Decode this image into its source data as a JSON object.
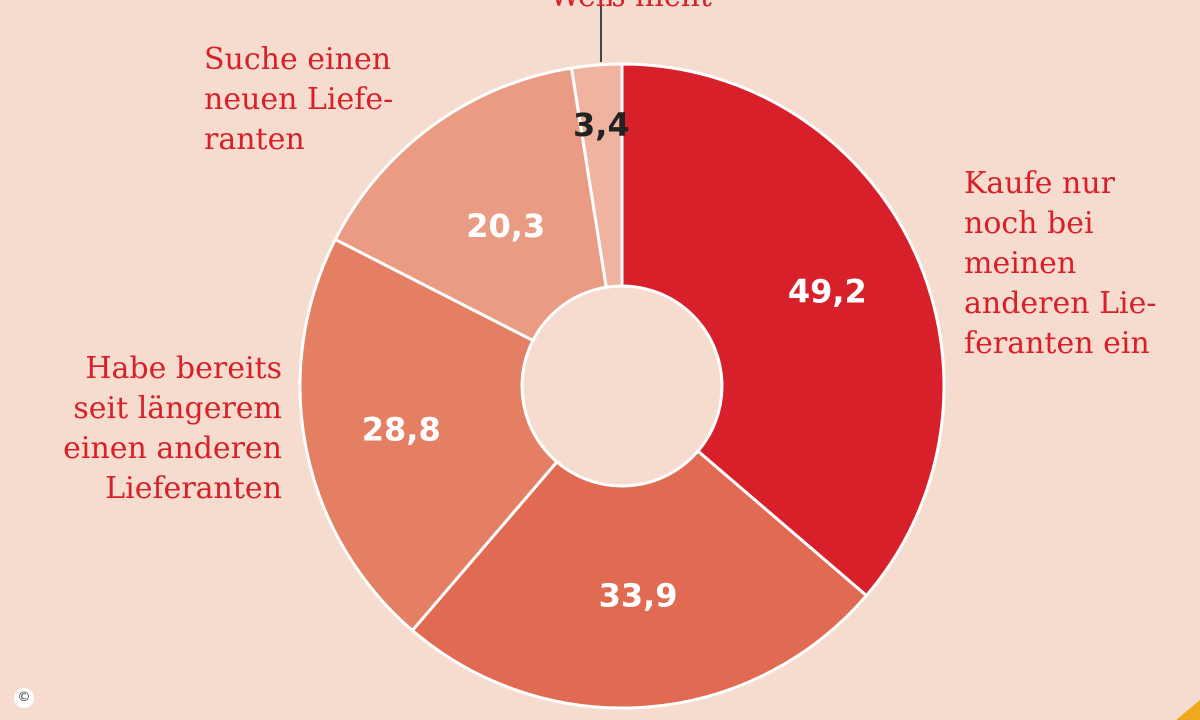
{
  "chart_data": {
    "type": "pie",
    "donut": true,
    "slices": [
      {
        "label": "Kaufe nur\nnoch bei\nmeinen\nanderen Lie-\nferanten ein",
        "value": 49.2,
        "display": "49,2",
        "color": "#d8202b",
        "value_color": "#ffffff"
      },
      {
        "label": "",
        "value": 33.9,
        "display": "33,9",
        "color": "#e06b52",
        "value_color": "#ffffff"
      },
      {
        "label": "Habe bereits\nseit längerem\neinen anderen\nLieferanten",
        "value": 28.8,
        "display": "28,8",
        "color": "#e47f64",
        "value_color": "#ffffff"
      },
      {
        "label": "Suche einen\nneuen Liefe-\nranten",
        "value": 20.3,
        "display": "20,3",
        "color": "#e99c83",
        "value_color": "#ffffff"
      },
      {
        "label": "Weiß nicht",
        "value": 3.4,
        "display": "3,4",
        "color": "#efb3a0",
        "value_color": "#222222"
      }
    ],
    "label_color": "#d8202b",
    "background": "#f6dccf"
  },
  "footer": {
    "copyright_symbol": "©"
  }
}
